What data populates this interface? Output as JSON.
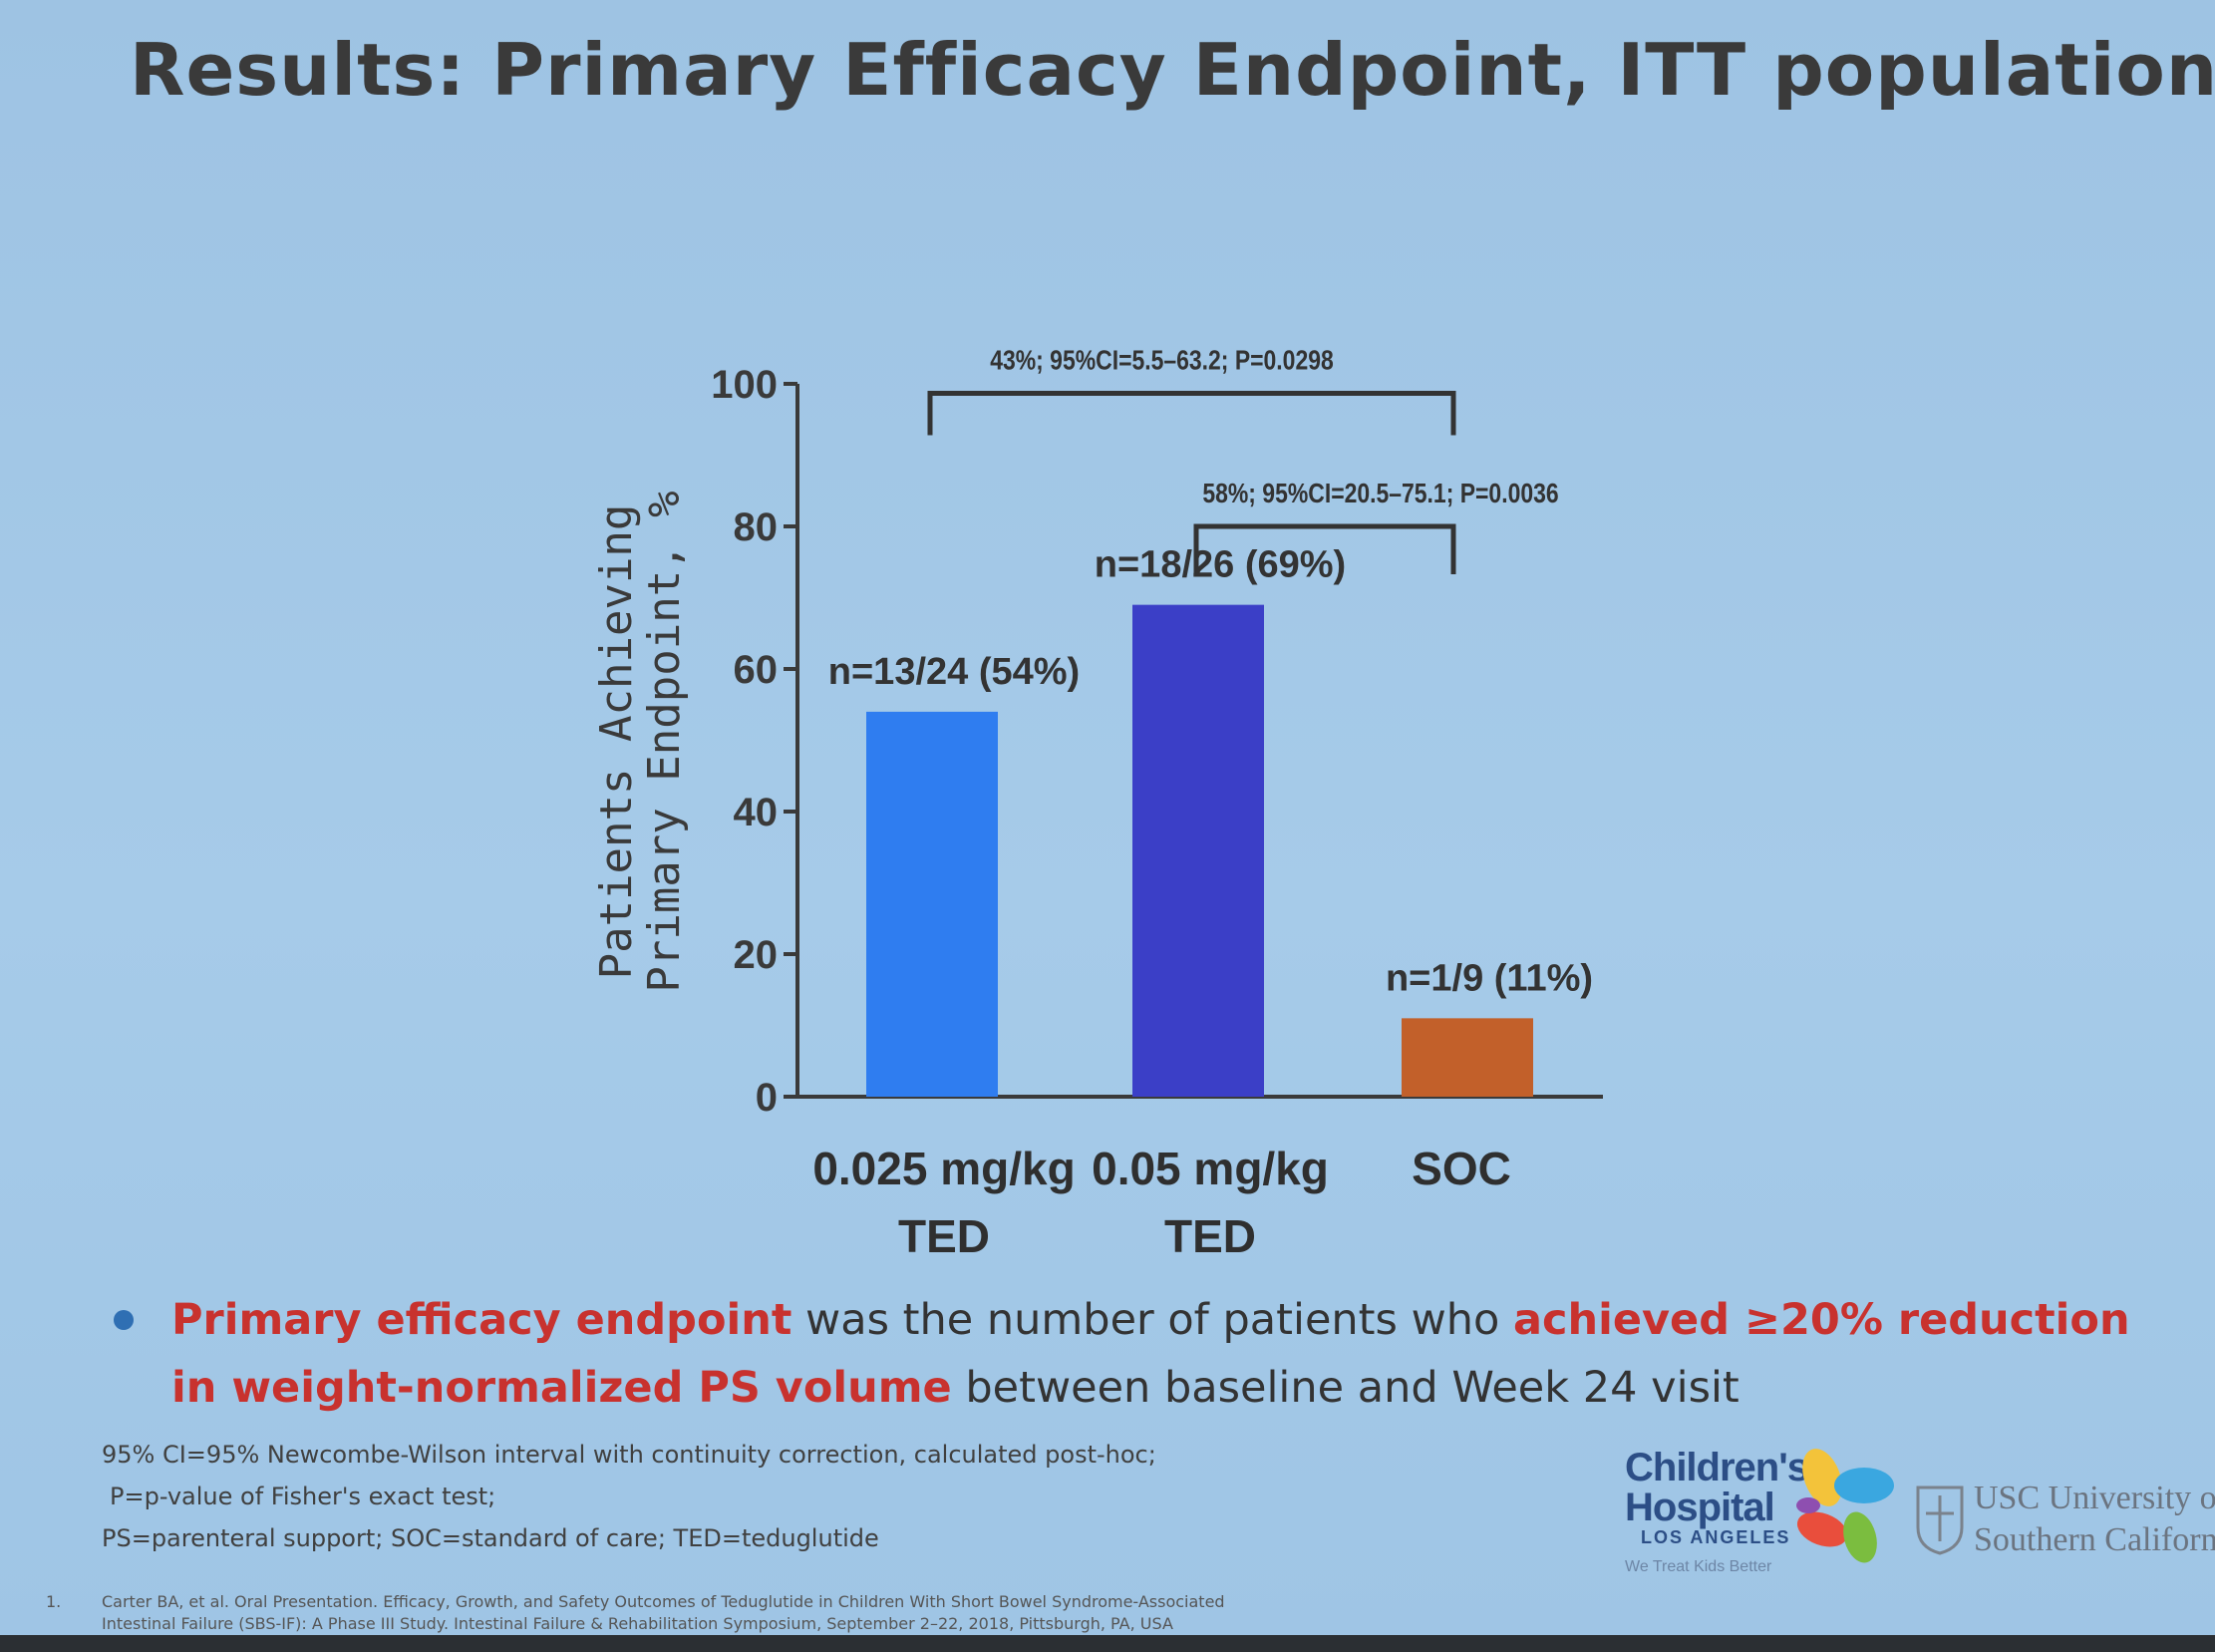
{
  "slide": {
    "title": "Results: Primary Efficacy Endpoint, ITT population"
  },
  "chart_data": {
    "type": "bar",
    "ylabel_line1": "Patients Achieving",
    "ylabel_line2": "Primary Endpoint, %",
    "ylim": [
      0,
      100
    ],
    "yticks": [
      "0",
      "20",
      "40",
      "60",
      "80",
      "100"
    ],
    "categories": [
      {
        "line1": "0.025 mg/kg",
        "line2": "TED"
      },
      {
        "line1": "0.05 mg/kg",
        "line2": "TED"
      },
      {
        "line1": "SOC",
        "line2": ""
      }
    ],
    "values": [
      54,
      69,
      11
    ],
    "data_labels": [
      "n=13/24 (54%)",
      "n=18/26 (69%)",
      "n=1/9  (11%)"
    ],
    "colors": [
      "#2f7df0",
      "#3b3fc7",
      "#c2602a"
    ],
    "comparisons": [
      {
        "label": "43%; 95%CI=5.5–63.2; P=0.0298",
        "from": 0,
        "to": 2,
        "level": 97
      },
      {
        "label": "58%; 95%CI=20.5–75.1; P=0.0036",
        "from": 1,
        "to": 2,
        "level": 80
      }
    ]
  },
  "bullet": {
    "part1": "Primary efficacy endpoint",
    "part2": " was the number of patients who ",
    "part3": "achieved ≥20% reduction in weight-normalized PS volume",
    "part4": " between baseline and Week 24 visit"
  },
  "footnotes": {
    "line1": "95% CI=95% Newcombe-Wilson interval with continuity correction, calculated post-hoc;",
    "line2": "P=p-value of Fisher's exact test;",
    "line3": "PS=parenteral support; SOC=standard of care; TED=teduglutide"
  },
  "reference": {
    "number": "1.",
    "line1": "Carter BA, et al. Oral Presentation. Efficacy, Growth, and Safety Outcomes of Teduglutide in Children With Short Bowel Syndrome-Associated",
    "line2": "Intestinal Failure (SBS-IF): A Phase III Study. Intestinal Failure & Rehabilitation Symposium, September 2–22, 2018, Pittsburgh, PA, USA"
  },
  "logos": {
    "chla_line1": "Children's",
    "chla_line2": "Hospital",
    "chla_line3": "LOS ANGELES",
    "chla_tagline": "We Treat Kids Better",
    "usc_line1": "USC University of",
    "usc_line2": "Southern California"
  }
}
